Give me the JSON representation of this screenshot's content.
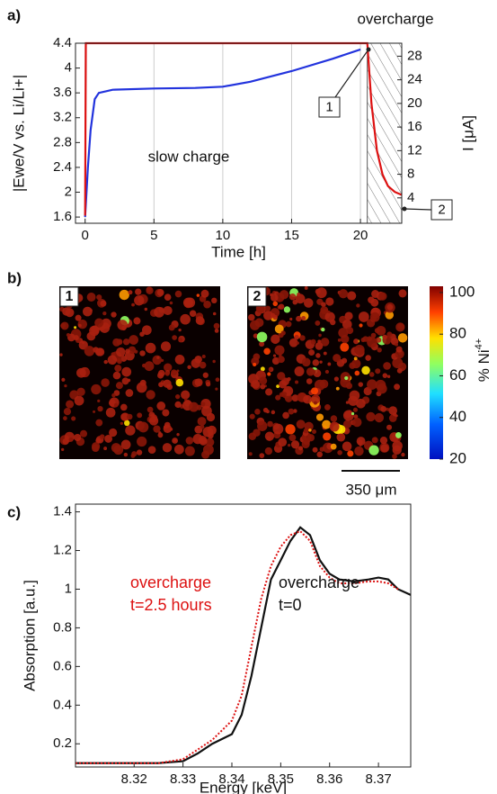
{
  "chart_data": [
    {
      "type": "line",
      "panel_label": "a)",
      "x_label": "Time [h]",
      "y_label": "|Ewe/V vs. Li/Li+|",
      "y2_label": "I [μA]",
      "xlim": [
        -0.7,
        23
      ],
      "xticks": [
        0,
        5,
        10,
        15,
        20
      ],
      "grid": "x",
      "ylim": [
        1.5,
        4.4
      ],
      "yticks": [
        1.6,
        2,
        2.4,
        2.8,
        3.2,
        3.6,
        4,
        4.4
      ],
      "y2lim": [
        -0.3,
        30.2
      ],
      "y2ticks": [
        4,
        8,
        12,
        16,
        20,
        24,
        28
      ],
      "series": [
        {
          "color": "#2233dd",
          "x": [
            0,
            0.2,
            0.4,
            0.7,
            1,
            2,
            5,
            8,
            10,
            12,
            15,
            18,
            20
          ],
          "values": [
            1.6,
            2.4,
            3.0,
            3.5,
            3.6,
            3.65,
            3.67,
            3.68,
            3.7,
            3.78,
            3.95,
            4.15,
            4.3
          ]
        },
        {
          "color": "#dd1111",
          "axis": "y2",
          "x": [
            0,
            0.05,
            20.5,
            20.8,
            21.2,
            21.6,
            22,
            22.5,
            23
          ],
          "values": [
            1,
            30.2,
            30.2,
            20,
            12,
            8,
            6,
            5,
            4.5
          ]
        }
      ],
      "overcharge_start": 20.5,
      "overcharge_label": "overcharge",
      "phase_label": "slow charge",
      "markers": [
        "1",
        "2"
      ]
    },
    {
      "type": "colorbar",
      "panel_label": "b)",
      "image_labels": [
        "1",
        "2"
      ],
      "zlim": [
        20,
        103
      ],
      "zticks": [
        20,
        40,
        60,
        80,
        100
      ],
      "label": "% Ni",
      "label_sup": "4+",
      "scale_bar": "350 μm"
    },
    {
      "type": "line",
      "panel_label": "c)",
      "x_label": "Energy [keV]",
      "y_label": "Absorption [a.u.]",
      "xlim": [
        8.308,
        8.3766
      ],
      "xticks": [
        8.32,
        8.33,
        8.34,
        8.35,
        8.36,
        8.37
      ],
      "ylim": [
        0.08,
        1.44
      ],
      "yticks": [
        0.2,
        0.4,
        0.6,
        0.8,
        1,
        1.2,
        1.4
      ],
      "series": [
        {
          "color": "#111111",
          "x": [
            8.308,
            8.32,
            8.325,
            8.33,
            8.333,
            8.336,
            8.34,
            8.342,
            8.344,
            8.346,
            8.348,
            8.35,
            8.352,
            8.354,
            8.356,
            8.358,
            8.36,
            8.362,
            8.365,
            8.368,
            8.37,
            8.372,
            8.374,
            8.3766
          ],
          "values": [
            0.1,
            0.1,
            0.1,
            0.11,
            0.15,
            0.2,
            0.25,
            0.35,
            0.55,
            0.8,
            1.05,
            1.15,
            1.25,
            1.32,
            1.28,
            1.15,
            1.08,
            1.05,
            1.04,
            1.05,
            1.06,
            1.05,
            1.0,
            0.97
          ]
        },
        {
          "color": "#dd1111",
          "dash": true,
          "x": [
            8.308,
            8.325,
            8.33,
            8.333,
            8.336,
            8.34,
            8.342,
            8.344,
            8.346,
            8.348,
            8.35,
            8.352,
            8.354,
            8.356,
            8.358,
            8.36,
            8.362,
            8.365,
            8.368,
            8.37,
            8.372,
            8.374
          ],
          "values": [
            0.1,
            0.1,
            0.12,
            0.17,
            0.22,
            0.32,
            0.45,
            0.7,
            0.95,
            1.12,
            1.22,
            1.28,
            1.3,
            1.25,
            1.12,
            1.06,
            1.03,
            1.03,
            1.04,
            1.04,
            1.03,
            1.0
          ]
        }
      ],
      "annotations": [
        {
          "lines": [
            "overcharge",
            "t=2.5 hours"
          ],
          "color": "#dd1111"
        },
        {
          "lines": [
            "overcharge",
            "t=0"
          ],
          "color": "#111111"
        }
      ]
    }
  ]
}
